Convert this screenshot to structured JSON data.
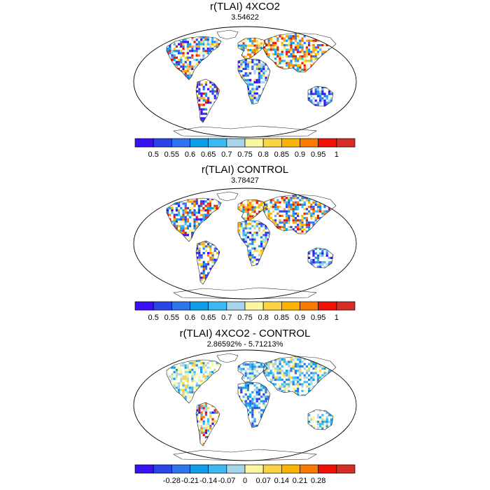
{
  "colors": {
    "palette_positive": [
      "#3a10f5",
      "#2a44e8",
      "#2f76ee",
      "#109ee8",
      "#3cb8f2",
      "#a6d4ea",
      "#fbf6a0",
      "#fad443",
      "#fbb204",
      "#fa7a00",
      "#f01005",
      "#d42e26"
    ],
    "palette_diff": [
      "#3a10f5",
      "#2a44e8",
      "#2f76ee",
      "#109ee8",
      "#3cb8f2",
      "#a6d4ea",
      "#fbf6a0",
      "#fad443",
      "#fbb204",
      "#fa7a00",
      "#f01005",
      "#d42e26"
    ],
    "land_outline": "#222222",
    "map_frame": "#000000"
  },
  "panels": [
    {
      "title": "r(TLAI) 4XCO2",
      "subtitle": "3.54622",
      "colorbar_labels": [
        "0.5",
        "0.55",
        "0.6",
        "0.65",
        "0.7",
        "0.75",
        "0.8",
        "0.85",
        "0.9",
        "0.95",
        "1"
      ]
    },
    {
      "title": "r(TLAI) CONTROL",
      "subtitle": "3.78427",
      "colorbar_labels": [
        "0.5",
        "0.55",
        "0.6",
        "0.65",
        "0.7",
        "0.75",
        "0.8",
        "0.85",
        "0.9",
        "0.95",
        "1"
      ]
    },
    {
      "title": "r(TLAI) 4XCO2 - CONTROL",
      "subtitle": "2.86592% - 5.71213%",
      "colorbar_labels": [
        "-0.28",
        "-0.21",
        "-0.14",
        "-0.07",
        "0",
        "0.07",
        "0.14",
        "0.21",
        "0.28"
      ]
    }
  ]
}
